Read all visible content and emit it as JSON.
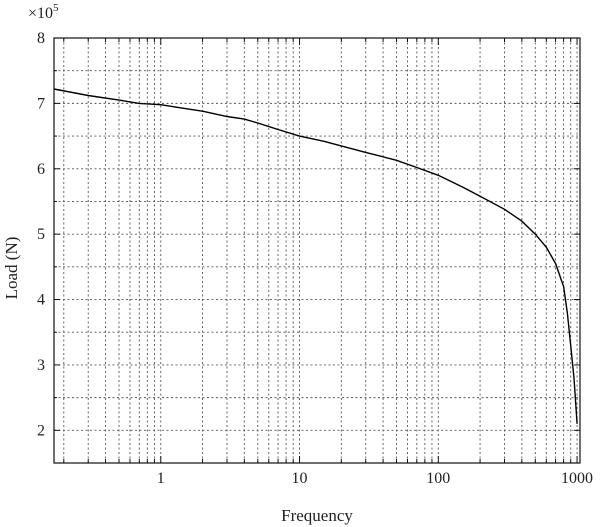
{
  "chart_data": {
    "type": "line",
    "xlabel": "Frequency",
    "ylabel": "Load (N)",
    "xscale": "log",
    "xlim": [
      0.17,
      1050
    ],
    "ylim": [
      1.5,
      8
    ],
    "y_multiplier_label": "×10",
    "y_multiplier_exponent": "5",
    "x_ticks": [
      {
        "value": 1,
        "label": "1"
      },
      {
        "value": 10,
        "label": "10"
      },
      {
        "value": 100,
        "label": "100"
      },
      {
        "value": 1000,
        "label": "1000"
      }
    ],
    "y_ticks": [
      {
        "value": 2,
        "label": "2"
      },
      {
        "value": 3,
        "label": "3"
      },
      {
        "value": 4,
        "label": "4"
      },
      {
        "value": 5,
        "label": "5"
      },
      {
        "value": 6,
        "label": "6"
      },
      {
        "value": 7,
        "label": "7"
      },
      {
        "value": 8,
        "label": "8"
      }
    ],
    "y_minor_grid": [
      2.5,
      3.5,
      4.5,
      5.5,
      6.5,
      7.5
    ],
    "grid": "dotted",
    "series": [
      {
        "color": "#000000",
        "x": [
          0.17,
          0.3,
          0.5,
          0.7,
          1.0,
          1.5,
          2,
          3,
          4,
          5,
          7,
          10,
          15,
          20,
          30,
          50,
          70,
          100,
          150,
          200,
          300,
          400,
          500,
          600,
          700,
          800,
          850,
          900,
          950,
          1000
        ],
        "y": [
          7.22,
          7.12,
          7.05,
          7.0,
          6.98,
          6.92,
          6.88,
          6.8,
          6.76,
          6.7,
          6.6,
          6.5,
          6.42,
          6.35,
          6.25,
          6.13,
          6.02,
          5.9,
          5.72,
          5.58,
          5.38,
          5.2,
          5.0,
          4.8,
          4.55,
          4.2,
          3.8,
          3.3,
          2.8,
          2.1
        ]
      }
    ]
  }
}
